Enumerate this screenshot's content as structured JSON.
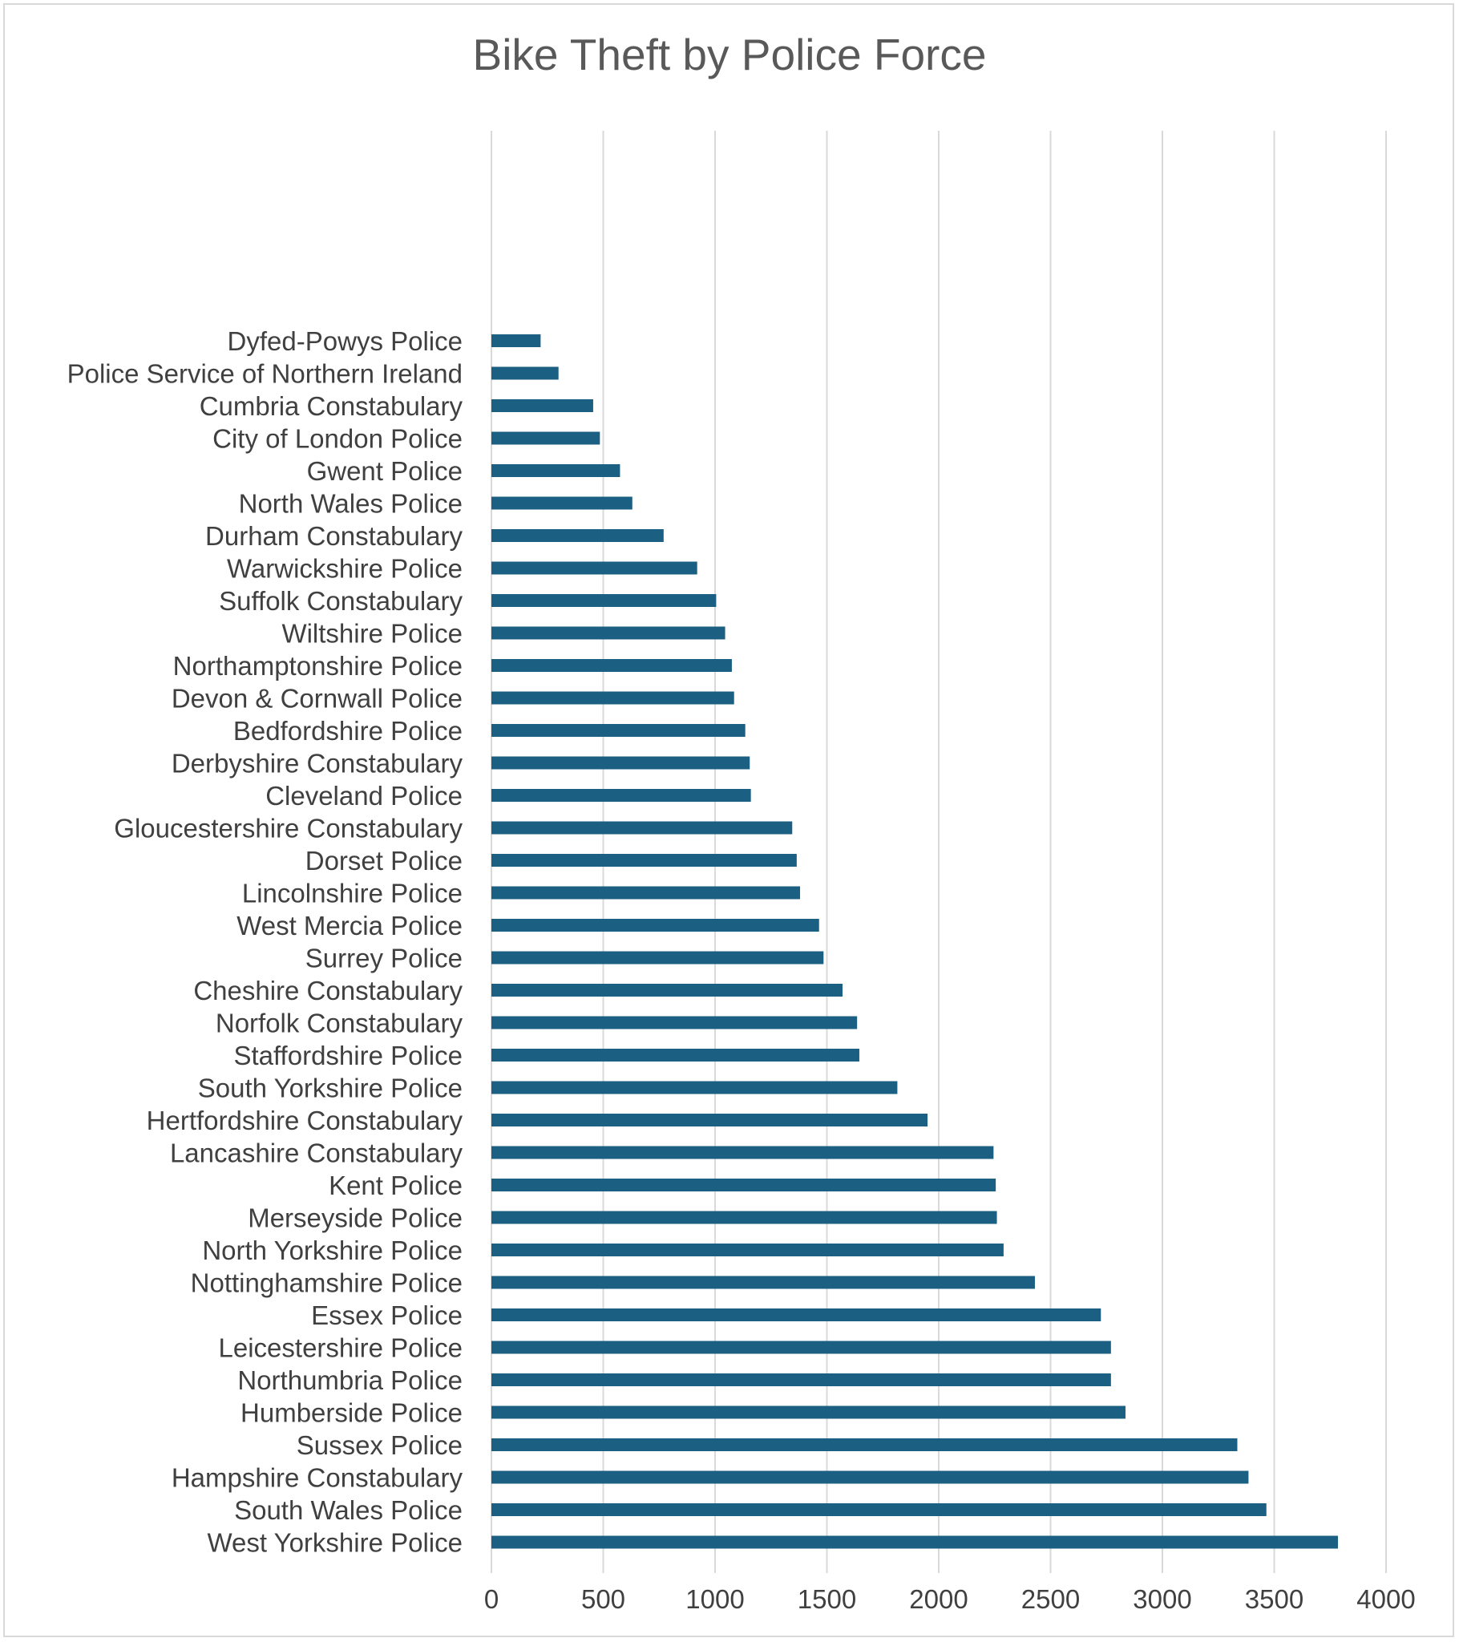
{
  "chart_data": {
    "type": "bar",
    "orientation": "horizontal",
    "title": "Bike Theft by Police Force",
    "xlabel": "",
    "ylabel": "",
    "xlim": [
      0,
      4000
    ],
    "x_ticks": [
      "0",
      "500",
      "1000",
      "1500",
      "2000",
      "2500",
      "3000",
      "3500",
      "4000"
    ],
    "grid": true,
    "legend": "none",
    "bar_color": "#1b5f82",
    "gridline_color": "#d9d9d9",
    "categories": [
      "Dyfed-Powys Police",
      "Police Service of Northern Ireland",
      "Cumbria Constabulary",
      "City of London Police",
      "Gwent Police",
      "North Wales Police",
      "Durham Constabulary",
      "Warwickshire Police",
      "Suffolk Constabulary",
      "Wiltshire Police",
      "Northamptonshire Police",
      "Devon & Cornwall Police",
      "Bedfordshire Police",
      "Derbyshire Constabulary",
      "Cleveland Police",
      "Gloucestershire Constabulary",
      "Dorset Police",
      "Lincolnshire Police",
      "West Mercia Police",
      "Surrey Police",
      "Cheshire Constabulary",
      "Norfolk Constabulary",
      "Staffordshire Police",
      "South Yorkshire Police",
      "Hertfordshire Constabulary",
      "Lancashire Constabulary",
      "Kent Police",
      "Merseyside Police",
      "North Yorkshire Police",
      "Nottinghamshire Police",
      "Essex Police",
      "Leicestershire Police",
      "Northumbria Police",
      "Humberside Police",
      "Sussex Police",
      "Hampshire Constabulary",
      "South Wales Police",
      "West Yorkshire Police"
    ],
    "values": [
      220,
      300,
      455,
      485,
      575,
      630,
      770,
      920,
      1005,
      1045,
      1075,
      1085,
      1135,
      1155,
      1160,
      1345,
      1365,
      1380,
      1465,
      1485,
      1570,
      1635,
      1645,
      1815,
      1950,
      2245,
      2255,
      2260,
      2290,
      2430,
      2725,
      2770,
      2770,
      2835,
      3335,
      3385,
      3465,
      3785
    ]
  }
}
